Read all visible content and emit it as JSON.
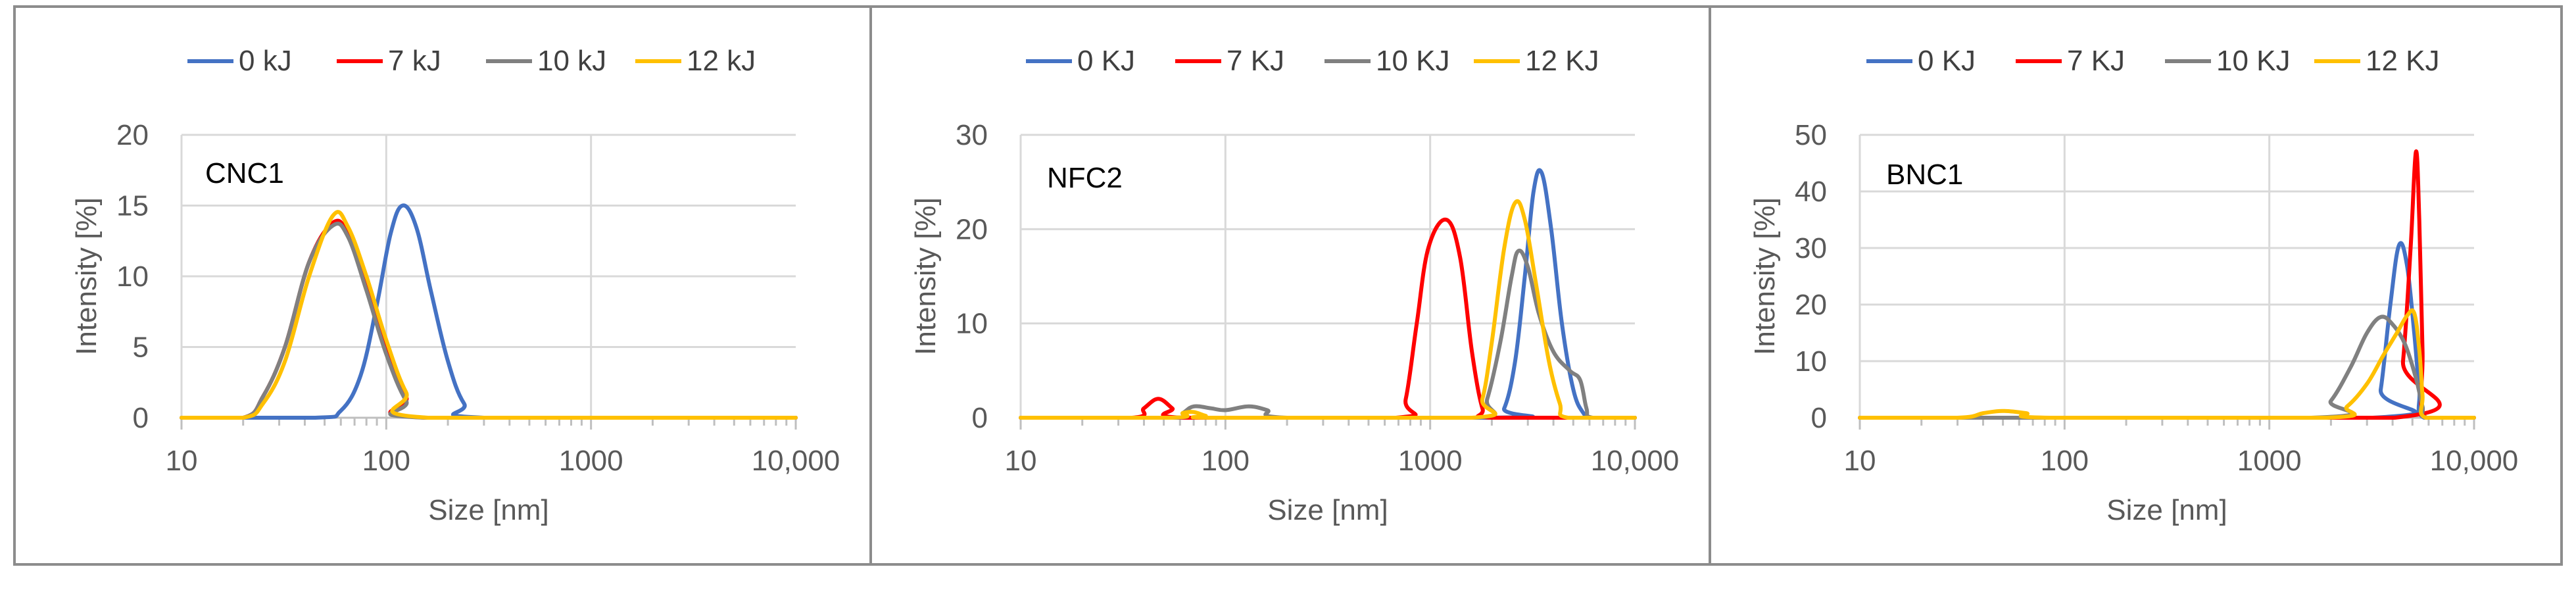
{
  "chart_data": [
    {
      "type": "line",
      "annotation": "CNC1",
      "xlabel": "Size [nm]",
      "ylabel": "Intensity [%]",
      "xscale": "log",
      "xlim": [
        10,
        10000
      ],
      "ylim": [
        0,
        20
      ],
      "x_ticks": [
        10,
        100,
        1000,
        10000
      ],
      "x_tick_labels": [
        "10",
        "100",
        "1000",
        "10,000"
      ],
      "y_ticks": [
        0,
        5,
        10,
        15,
        20
      ],
      "grid": true,
      "legend": "top",
      "series": [
        {
          "name": "0 kJ",
          "color": "#4472c4",
          "points": [
            [
              10,
              0
            ],
            [
              45,
              0
            ],
            [
              60,
              0.5
            ],
            [
              75,
              3
            ],
            [
              90,
              8
            ],
            [
              105,
              13
            ],
            [
              120,
              15
            ],
            [
              140,
              13.5
            ],
            [
              165,
              9
            ],
            [
              200,
              4
            ],
            [
              240,
              1
            ],
            [
              300,
              0
            ],
            [
              10000,
              0
            ]
          ]
        },
        {
          "name": "7 kJ",
          "color": "#ff0000",
          "points": [
            [
              10,
              0
            ],
            [
              20,
              0
            ],
            [
              25,
              1.5
            ],
            [
              32,
              5
            ],
            [
              42,
              11
            ],
            [
              55,
              13.8
            ],
            [
              65,
              13
            ],
            [
              80,
              9.5
            ],
            [
              100,
              5
            ],
            [
              125,
              1.5
            ],
            [
              155,
              0
            ],
            [
              10000,
              0
            ]
          ]
        },
        {
          "name": "10 kJ",
          "color": "#808080",
          "points": [
            [
              10,
              0
            ],
            [
              20,
              0
            ],
            [
              25,
              1.5
            ],
            [
              32,
              5
            ],
            [
              42,
              11
            ],
            [
              55,
              13.6
            ],
            [
              65,
              12.8
            ],
            [
              80,
              9
            ],
            [
              100,
              4.5
            ],
            [
              125,
              1.2
            ],
            [
              155,
              0
            ],
            [
              10000,
              0
            ]
          ]
        },
        {
          "name": "12 kJ",
          "color": "#ffc000",
          "points": [
            [
              10,
              0
            ],
            [
              20,
              0
            ],
            [
              25,
              1
            ],
            [
              32,
              4
            ],
            [
              42,
              10
            ],
            [
              55,
              14.3
            ],
            [
              65,
              13.5
            ],
            [
              80,
              10
            ],
            [
              100,
              5.5
            ],
            [
              125,
              1.8
            ],
            [
              160,
              0
            ],
            [
              10000,
              0
            ]
          ]
        }
      ]
    },
    {
      "type": "line",
      "annotation": "NFC2",
      "xlabel": "Size [nm]",
      "ylabel": "Intensity [%]",
      "xscale": "log",
      "xlim": [
        10,
        10000
      ],
      "ylim": [
        0,
        30
      ],
      "x_ticks": [
        10,
        100,
        1000,
        10000
      ],
      "x_tick_labels": [
        "10",
        "100",
        "1000",
        "10,000"
      ],
      "y_ticks": [
        0,
        10,
        20,
        30
      ],
      "grid": true,
      "legend": "top",
      "series": [
        {
          "name": "0 KJ",
          "color": "#4472c4",
          "points": [
            [
              10,
              0
            ],
            [
              2000,
              0
            ],
            [
              2300,
              1
            ],
            [
              2600,
              6
            ],
            [
              2900,
              15
            ],
            [
              3200,
              24
            ],
            [
              3500,
              26
            ],
            [
              3900,
              20
            ],
            [
              4400,
              10
            ],
            [
              5000,
              3
            ],
            [
              5600,
              0.5
            ],
            [
              6200,
              0
            ],
            [
              10000,
              0
            ]
          ]
        },
        {
          "name": "7 KJ",
          "color": "#ff0000",
          "points": [
            [
              10,
              0
            ],
            [
              35,
              0
            ],
            [
              40,
              1
            ],
            [
              47,
              2
            ],
            [
              55,
              1
            ],
            [
              62,
              0
            ],
            [
              680,
              0
            ],
            [
              760,
              2
            ],
            [
              860,
              10
            ],
            [
              980,
              18
            ],
            [
              1200,
              21
            ],
            [
              1400,
              17
            ],
            [
              1600,
              7
            ],
            [
              1800,
              1
            ],
            [
              2000,
              0
            ],
            [
              10000,
              0
            ]
          ]
        },
        {
          "name": "10 KJ",
          "color": "#808080",
          "points": [
            [
              10,
              0
            ],
            [
              55,
              0
            ],
            [
              62,
              0.5
            ],
            [
              70,
              1.2
            ],
            [
              85,
              1
            ],
            [
              100,
              0.8
            ],
            [
              130,
              1.2
            ],
            [
              160,
              0.8
            ],
            [
              200,
              0
            ],
            [
              1700,
              0
            ],
            [
              1900,
              2
            ],
            [
              2200,
              8
            ],
            [
              2500,
              15
            ],
            [
              2700,
              17.7
            ],
            [
              3000,
              16
            ],
            [
              3400,
              11
            ],
            [
              4000,
              7
            ],
            [
              4800,
              5
            ],
            [
              5400,
              4
            ],
            [
              5800,
              1
            ],
            [
              6200,
              0
            ],
            [
              10000,
              0
            ]
          ]
        },
        {
          "name": "12 KJ",
          "color": "#ffc000",
          "points": [
            [
              10,
              0
            ],
            [
              55,
              0
            ],
            [
              62,
              0.5
            ],
            [
              70,
              0.6
            ],
            [
              80,
              0.2
            ],
            [
              90,
              0
            ],
            [
              1600,
              0
            ],
            [
              1800,
              2
            ],
            [
              2000,
              8
            ],
            [
              2300,
              18
            ],
            [
              2600,
              22.8
            ],
            [
              2900,
              21
            ],
            [
              3300,
              14
            ],
            [
              3800,
              6
            ],
            [
              4300,
              1.5
            ],
            [
              4700,
              0
            ],
            [
              10000,
              0
            ]
          ]
        }
      ]
    },
    {
      "type": "line",
      "annotation": "BNC1",
      "xlabel": "Size [nm]",
      "ylabel": "Intensity [%]",
      "xscale": "log",
      "xlim": [
        10,
        10000
      ],
      "ylim": [
        0,
        50
      ],
      "x_ticks": [
        10,
        100,
        1000,
        10000
      ],
      "x_tick_labels": [
        "10",
        "100",
        "1000",
        "10,000"
      ],
      "y_ticks": [
        0,
        10,
        20,
        30,
        40,
        50
      ],
      "grid": true,
      "legend": "top",
      "series": [
        {
          "name": "0 KJ",
          "color": "#4472c4",
          "points": [
            [
              10,
              0
            ],
            [
              3200,
              0
            ],
            [
              3500,
              5
            ],
            [
              3900,
              20
            ],
            [
              4300,
              30.5
            ],
            [
              4700,
              27
            ],
            [
              5100,
              15
            ],
            [
              5400,
              5
            ],
            [
              5700,
              0
            ],
            [
              10000,
              0
            ]
          ]
        },
        {
          "name": "7 KJ",
          "color": "#ff0000",
          "points": [
            [
              10,
              0
            ],
            [
              4100,
              0
            ],
            [
              4500,
              10
            ],
            [
              4900,
              30
            ],
            [
              5200,
              47
            ],
            [
              5400,
              35
            ],
            [
              5600,
              12
            ],
            [
              5800,
              0
            ],
            [
              10000,
              0
            ]
          ]
        },
        {
          "name": "10 KJ",
          "color": "#808080",
          "points": [
            [
              10,
              0
            ],
            [
              1600,
              0
            ],
            [
              2000,
              3
            ],
            [
              2500,
              9
            ],
            [
              3000,
              15
            ],
            [
              3500,
              17.8
            ],
            [
              4000,
              16.5
            ],
            [
              4600,
              13
            ],
            [
              5200,
              7
            ],
            [
              5600,
              2
            ],
            [
              5900,
              0
            ],
            [
              10000,
              0
            ]
          ]
        },
        {
          "name": "12 KJ",
          "color": "#ffc000",
          "points": [
            [
              10,
              0
            ],
            [
              30,
              0
            ],
            [
              40,
              0.8
            ],
            [
              50,
              1.2
            ],
            [
              65,
              0.8
            ],
            [
              85,
              0
            ],
            [
              1900,
              0
            ],
            [
              2400,
              2
            ],
            [
              3000,
              6
            ],
            [
              3600,
              11
            ],
            [
              4200,
              15
            ],
            [
              4700,
              18
            ],
            [
              5100,
              18.5
            ],
            [
              5400,
              12
            ],
            [
              5600,
              4
            ],
            [
              5800,
              0
            ],
            [
              10000,
              0
            ]
          ]
        }
      ]
    }
  ]
}
